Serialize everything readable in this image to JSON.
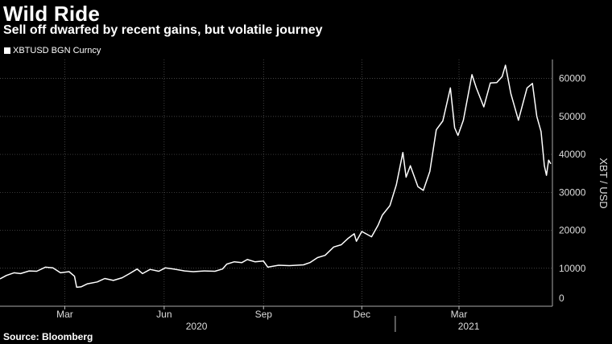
{
  "header": {
    "title": "Wild Ride",
    "subtitle": "Sell off dwarfed by recent gains, but volatile journey"
  },
  "footer": {
    "source": "Source: Bloomberg"
  },
  "colors": {
    "background": "#000000",
    "line": "#ffffff",
    "grid": "#5a5a5a"
  },
  "chart_data": {
    "type": "line",
    "title": "Wild Ride",
    "subtitle": "Sell off dwarfed by recent gains, but volatile journey",
    "ylabel": "XBT / USD",
    "xlabel": "",
    "ylim": [
      0,
      65000
    ],
    "yticks": [
      0,
      10000,
      20000,
      30000,
      40000,
      50000,
      60000
    ],
    "xlim": [
      "2020-01-01",
      "2021-05-25"
    ],
    "x_ticks": [
      {
        "date": "2020-03-01",
        "label": "Mar"
      },
      {
        "date": "2020-06-01",
        "label": "Jun"
      },
      {
        "date": "2020-09-01",
        "label": "Sep"
      },
      {
        "date": "2020-12-01",
        "label": "Dec"
      },
      {
        "date": "2021-03-01",
        "label": "Mar"
      }
    ],
    "year_labels": [
      {
        "date": "2020-07-01",
        "label": "2020"
      },
      {
        "date": "2021-03-10",
        "label": "2021"
      }
    ],
    "year_separator": "2021-01-01",
    "grid": true,
    "legend": "top-left",
    "y_axis_side": "right",
    "series": [
      {
        "name": "XBTUSD BGN Curncy",
        "color": "#ffffff",
        "points": [
          [
            "2020-01-01",
            7200
          ],
          [
            "2020-01-07",
            8100
          ],
          [
            "2020-01-14",
            8800
          ],
          [
            "2020-01-20",
            8600
          ],
          [
            "2020-01-28",
            9300
          ],
          [
            "2020-02-04",
            9200
          ],
          [
            "2020-02-12",
            10300
          ],
          [
            "2020-02-19",
            10100
          ],
          [
            "2020-02-26",
            8800
          ],
          [
            "2020-03-05",
            9100
          ],
          [
            "2020-03-10",
            7900
          ],
          [
            "2020-03-12",
            5000
          ],
          [
            "2020-03-16",
            5100
          ],
          [
            "2020-03-22",
            5900
          ],
          [
            "2020-03-31",
            6400
          ],
          [
            "2020-04-07",
            7300
          ],
          [
            "2020-04-15",
            6800
          ],
          [
            "2020-04-23",
            7500
          ],
          [
            "2020-04-30",
            8600
          ],
          [
            "2020-05-07",
            9800
          ],
          [
            "2020-05-12",
            8600
          ],
          [
            "2020-05-19",
            9700
          ],
          [
            "2020-05-27",
            9200
          ],
          [
            "2020-06-02",
            10100
          ],
          [
            "2020-06-10",
            9800
          ],
          [
            "2020-06-20",
            9300
          ],
          [
            "2020-06-28",
            9100
          ],
          [
            "2020-07-08",
            9300
          ],
          [
            "2020-07-18",
            9200
          ],
          [
            "2020-07-25",
            9800
          ],
          [
            "2020-07-29",
            11100
          ],
          [
            "2020-08-05",
            11700
          ],
          [
            "2020-08-12",
            11500
          ],
          [
            "2020-08-17",
            12300
          ],
          [
            "2020-08-24",
            11700
          ],
          [
            "2020-09-01",
            11900
          ],
          [
            "2020-09-05",
            10300
          ],
          [
            "2020-09-15",
            10800
          ],
          [
            "2020-09-25",
            10700
          ],
          [
            "2020-10-08",
            10900
          ],
          [
            "2020-10-14",
            11500
          ],
          [
            "2020-10-21",
            12800
          ],
          [
            "2020-10-28",
            13400
          ],
          [
            "2020-11-05",
            15600
          ],
          [
            "2020-11-12",
            16200
          ],
          [
            "2020-11-18",
            17800
          ],
          [
            "2020-11-24",
            19100
          ],
          [
            "2020-11-26",
            17100
          ],
          [
            "2020-12-01",
            19700
          ],
          [
            "2020-12-10",
            18300
          ],
          [
            "2020-12-16",
            21300
          ],
          [
            "2020-12-20",
            24000
          ],
          [
            "2020-12-27",
            26500
          ],
          [
            "2021-01-02",
            32000
          ],
          [
            "2021-01-08",
            40500
          ],
          [
            "2021-01-11",
            34000
          ],
          [
            "2021-01-15",
            37000
          ],
          [
            "2021-01-22",
            31500
          ],
          [
            "2021-01-27",
            30500
          ],
          [
            "2021-02-02",
            35500
          ],
          [
            "2021-02-08",
            46500
          ],
          [
            "2021-02-14",
            48800
          ],
          [
            "2021-02-21",
            57500
          ],
          [
            "2021-02-25",
            47000
          ],
          [
            "2021-02-28",
            45000
          ],
          [
            "2021-03-05",
            49000
          ],
          [
            "2021-03-13",
            61000
          ],
          [
            "2021-03-17",
            57500
          ],
          [
            "2021-03-24",
            52500
          ],
          [
            "2021-03-30",
            58800
          ],
          [
            "2021-04-05",
            58900
          ],
          [
            "2021-04-10",
            60500
          ],
          [
            "2021-04-13",
            63500
          ],
          [
            "2021-04-18",
            56000
          ],
          [
            "2021-04-25",
            49000
          ],
          [
            "2021-05-03",
            57500
          ],
          [
            "2021-05-08",
            58700
          ],
          [
            "2021-05-12",
            50000
          ],
          [
            "2021-05-16",
            46000
          ],
          [
            "2021-05-19",
            37000
          ],
          [
            "2021-05-21",
            34500
          ],
          [
            "2021-05-23",
            38500
          ],
          [
            "2021-05-25",
            37500
          ]
        ]
      }
    ]
  }
}
